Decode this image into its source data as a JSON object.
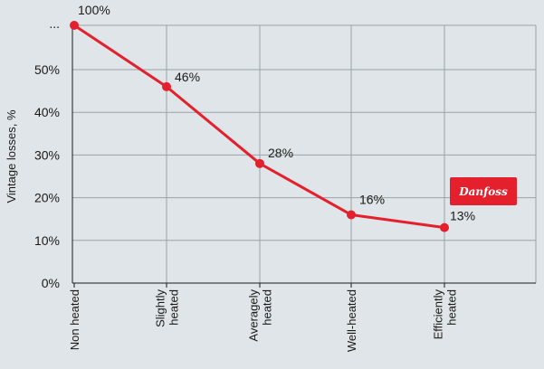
{
  "chart_data": {
    "type": "line",
    "ylabel": "Vintage losses, %",
    "xlabel": "",
    "categories": [
      [
        "Non heated"
      ],
      [
        "Slightly",
        "heated"
      ],
      [
        "Averagely",
        "heated"
      ],
      [
        "Well-heated"
      ],
      [
        "Efficiently",
        "heated"
      ]
    ],
    "values": [
      100,
      46,
      28,
      16,
      13
    ],
    "data_labels": [
      "100%",
      "46%",
      "28%",
      "16%",
      "13%"
    ],
    "y_ticks": [
      0,
      10,
      20,
      30,
      40,
      50
    ],
    "y_tick_labels": [
      "0%",
      "10%",
      "20%",
      "30%",
      "40%",
      "50%"
    ],
    "y_break_label": "...",
    "axis_break": true,
    "grid": true,
    "line_color": "#e5202d",
    "grid_color": "#9aa3a8",
    "background": "#dfe5e8"
  },
  "logo": {
    "text": "Danfoss",
    "color": "#e5202d"
  }
}
